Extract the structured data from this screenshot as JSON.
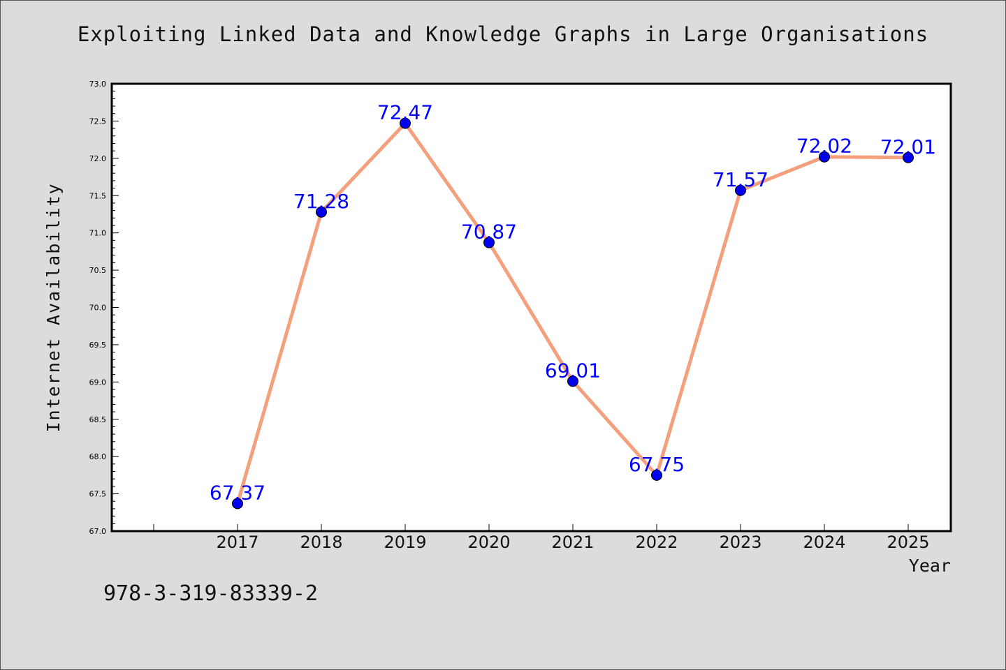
{
  "chart_data": {
    "type": "line",
    "title": "Exploiting Linked Data and Knowledge Graphs in Large Organisations",
    "xlabel": "Year",
    "ylabel": "Internet Availability",
    "categories": [
      "2017",
      "2018",
      "2019",
      "2020",
      "2021",
      "2022",
      "2023",
      "2024",
      "2025"
    ],
    "series": [
      {
        "values": [
          67.37,
          71.28,
          72.47,
          70.87,
          69.01,
          67.75,
          71.57,
          72.02,
          72.01
        ],
        "labels": [
          "67.37",
          "71.28",
          "72.47",
          "70.87",
          "69.01",
          "67.75",
          "71.57",
          "72.02",
          "72.01"
        ],
        "line_color": "#f4a07c",
        "marker_color": "#0000ee"
      }
    ],
    "ylim": [
      67.0,
      73.0
    ],
    "yticks": [
      "67.0",
      "67.5",
      "68.0",
      "68.5",
      "69.0",
      "69.5",
      "70.0",
      "70.5",
      "71.0",
      "71.5",
      "72.0",
      "72.5",
      "73.0"
    ],
    "label_color": "#0000ff",
    "grid": false
  },
  "footer": {
    "code": "978-3-319-83339-2"
  }
}
